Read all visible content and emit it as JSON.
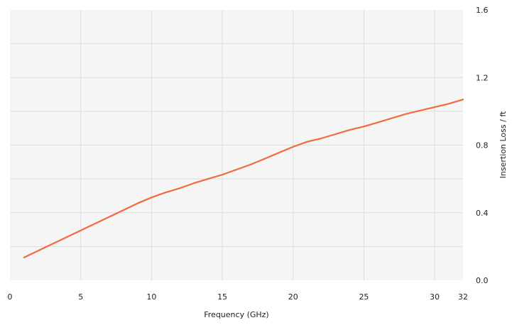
{
  "chart_data": {
    "type": "line",
    "title": "",
    "xlabel": "Frequency (GHz)",
    "ylabel": "Insertion Loss / ft",
    "xlim": [
      0,
      32
    ],
    "ylim": [
      0,
      1.6
    ],
    "grid": true,
    "y_axis_side": "right",
    "x_ticks": [
      0,
      5,
      10,
      15,
      20,
      25,
      30,
      32
    ],
    "x_tick_labels": [
      "0",
      "5",
      "10",
      "15",
      "20",
      "25",
      "30",
      "32"
    ],
    "y_ticks": [
      0,
      0.4,
      0.8,
      1.2,
      1.6
    ],
    "y_tick_labels": [
      "0.0",
      "0.4",
      "0.8",
      "1.2",
      "1.6"
    ],
    "series": [
      {
        "x": [
          1,
          2,
          3,
          4,
          5,
          6,
          7,
          8,
          9,
          10,
          10.5,
          11,
          12,
          13,
          14,
          15,
          16,
          17,
          18,
          19,
          20,
          21,
          22,
          23,
          24,
          25,
          26,
          27,
          28,
          29,
          30,
          31,
          32
        ],
        "y": [
          0.135,
          0.175,
          0.215,
          0.255,
          0.295,
          0.335,
          0.375,
          0.415,
          0.455,
          0.49,
          0.505,
          0.52,
          0.545,
          0.575,
          0.6,
          0.625,
          0.655,
          0.685,
          0.72,
          0.755,
          0.79,
          0.82,
          0.84,
          0.865,
          0.89,
          0.91,
          0.935,
          0.96,
          0.985,
          1.005,
          1.025,
          1.045,
          1.07
        ]
      }
    ]
  },
  "colors": {
    "line": "#f26a40",
    "plot_background": "#f5f5f5",
    "grid": "#dddddd",
    "text": "#222222"
  }
}
